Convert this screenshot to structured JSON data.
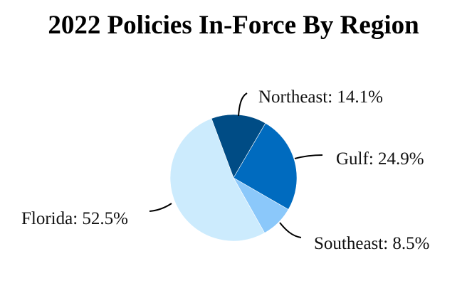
{
  "chart_data": {
    "type": "pie",
    "title": "2022 Policies In-Force By Region",
    "categories": [
      "Northeast",
      "Gulf",
      "Southeast",
      "Florida"
    ],
    "values": [
      14.1,
      24.9,
      8.5,
      52.5
    ],
    "unit": "%",
    "colors": [
      "#004C85",
      "#006BBF",
      "#8BC8FA",
      "#CCEBFD"
    ],
    "start_angle_deg_clockwise_from_top": -20.4,
    "labels": [
      "Northeast: 14.1%",
      "Gulf: 24.9%",
      "Southeast: 8.5%",
      "Florida: 52.5%"
    ],
    "legend": "none (callout labels with leader lines)"
  },
  "title": "2022 Policies In-Force By Region",
  "labels": {
    "northeast": "Northeast: 14.1%",
    "gulf": "Gulf: 24.9%",
    "southeast": "Southeast: 8.5%",
    "florida": "Florida: 52.5%"
  }
}
